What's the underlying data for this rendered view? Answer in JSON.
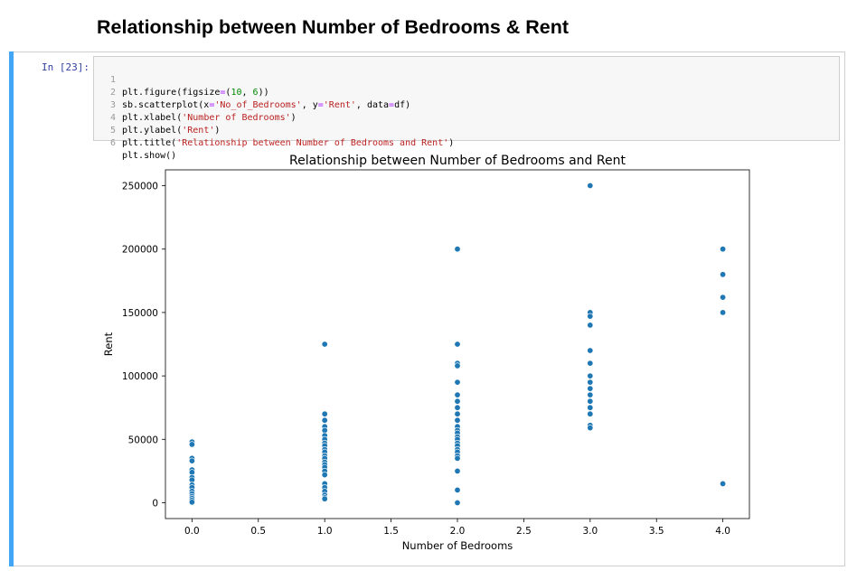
{
  "page": {
    "heading": "Relationship between Number of Bedrooms & Rent"
  },
  "cell": {
    "prompt": "In [23]:",
    "code_lines": [
      {
        "n": "1",
        "segments": [
          {
            "t": "plt.figure(figsize",
            "c": ""
          },
          {
            "t": "=",
            "c": "o"
          },
          {
            "t": "(",
            "c": ""
          },
          {
            "t": "10",
            "c": "n"
          },
          {
            "t": ", ",
            "c": ""
          },
          {
            "t": "6",
            "c": "n"
          },
          {
            "t": "))",
            "c": ""
          }
        ]
      },
      {
        "n": "2",
        "segments": [
          {
            "t": "sb.scatterplot(x",
            "c": ""
          },
          {
            "t": "=",
            "c": "o"
          },
          {
            "t": "'No_of_Bedrooms'",
            "c": "s"
          },
          {
            "t": ", y",
            "c": ""
          },
          {
            "t": "=",
            "c": "o"
          },
          {
            "t": "'Rent'",
            "c": "s"
          },
          {
            "t": ", data",
            "c": ""
          },
          {
            "t": "=",
            "c": "o"
          },
          {
            "t": "df)",
            "c": ""
          }
        ]
      },
      {
        "n": "3",
        "segments": [
          {
            "t": "plt.xlabel(",
            "c": ""
          },
          {
            "t": "'Number of Bedrooms'",
            "c": "s"
          },
          {
            "t": ")",
            "c": ""
          }
        ]
      },
      {
        "n": "4",
        "segments": [
          {
            "t": "plt.ylabel(",
            "c": ""
          },
          {
            "t": "'Rent'",
            "c": "s"
          },
          {
            "t": ")",
            "c": ""
          }
        ]
      },
      {
        "n": "5",
        "segments": [
          {
            "t": "plt.title(",
            "c": ""
          },
          {
            "t": "'Relationship between Number of Bedrooms and Rent'",
            "c": "s"
          },
          {
            "t": ")",
            "c": ""
          }
        ]
      },
      {
        "n": "6",
        "segments": [
          {
            "t": "plt.show()",
            "c": ""
          }
        ]
      }
    ]
  },
  "colors": {
    "point": "#1f77b4",
    "prompt": "#303f9f",
    "cell_bar": "#42a5f5"
  },
  "chart_data": {
    "type": "scatter",
    "title": "Relationship between Number of Bedrooms and Rent",
    "xlabel": "Number of Bedrooms",
    "ylabel": "Rent",
    "xlim": [
      -0.2,
      4.2
    ],
    "ylim": [
      -12500,
      262500
    ],
    "xticks": [
      0.0,
      0.5,
      1.0,
      1.5,
      2.0,
      2.5,
      3.0,
      3.5,
      4.0
    ],
    "xtick_labels": [
      "0.0",
      "0.5",
      "1.0",
      "1.5",
      "2.0",
      "2.5",
      "3.0",
      "3.5",
      "4.0"
    ],
    "yticks": [
      0,
      50000,
      100000,
      150000,
      200000,
      250000
    ],
    "ytick_labels": [
      "0",
      "50000",
      "100000",
      "150000",
      "200000",
      "250000"
    ],
    "grid": false,
    "points": [
      [
        0,
        48000
      ],
      [
        0,
        46000
      ],
      [
        0,
        35000
      ],
      [
        0,
        33000
      ],
      [
        0,
        26000
      ],
      [
        0,
        24000
      ],
      [
        0,
        20000
      ],
      [
        0,
        18000
      ],
      [
        0,
        14000
      ],
      [
        0,
        12000
      ],
      [
        0,
        9000
      ],
      [
        0,
        7000
      ],
      [
        0,
        5000
      ],
      [
        0,
        3500
      ],
      [
        0,
        2000
      ],
      [
        0,
        500
      ],
      [
        1,
        125000
      ],
      [
        1,
        70000
      ],
      [
        1,
        65000
      ],
      [
        1,
        60000
      ],
      [
        1,
        57000
      ],
      [
        1,
        53000
      ],
      [
        1,
        50000
      ],
      [
        1,
        47000
      ],
      [
        1,
        45000
      ],
      [
        1,
        42000
      ],
      [
        1,
        40000
      ],
      [
        1,
        37000
      ],
      [
        1,
        35000
      ],
      [
        1,
        32000
      ],
      [
        1,
        30000
      ],
      [
        1,
        28000
      ],
      [
        1,
        25000
      ],
      [
        1,
        22000
      ],
      [
        1,
        15000
      ],
      [
        1,
        12000
      ],
      [
        1,
        9000
      ],
      [
        1,
        6000
      ],
      [
        1,
        4000
      ],
      [
        1,
        3000
      ],
      [
        2,
        200000
      ],
      [
        2,
        125000
      ],
      [
        2,
        110000
      ],
      [
        2,
        108000
      ],
      [
        2,
        95000
      ],
      [
        2,
        85000
      ],
      [
        2,
        80000
      ],
      [
        2,
        75000
      ],
      [
        2,
        70000
      ],
      [
        2,
        65000
      ],
      [
        2,
        60000
      ],
      [
        2,
        57000
      ],
      [
        2,
        55000
      ],
      [
        2,
        52000
      ],
      [
        2,
        50000
      ],
      [
        2,
        47000
      ],
      [
        2,
        45000
      ],
      [
        2,
        42000
      ],
      [
        2,
        40000
      ],
      [
        2,
        37000
      ],
      [
        2,
        35000
      ],
      [
        2,
        25000
      ],
      [
        2,
        10000
      ],
      [
        2,
        0
      ],
      [
        3,
        250000
      ],
      [
        3,
        150000
      ],
      [
        3,
        147000
      ],
      [
        3,
        140000
      ],
      [
        3,
        120000
      ],
      [
        3,
        110000
      ],
      [
        3,
        100000
      ],
      [
        3,
        95000
      ],
      [
        3,
        90000
      ],
      [
        3,
        85000
      ],
      [
        3,
        80000
      ],
      [
        3,
        75000
      ],
      [
        3,
        70000
      ],
      [
        3,
        61000
      ],
      [
        3,
        59000
      ],
      [
        4,
        200000
      ],
      [
        4,
        180000
      ],
      [
        4,
        162000
      ],
      [
        4,
        150000
      ],
      [
        4,
        15000
      ]
    ]
  }
}
